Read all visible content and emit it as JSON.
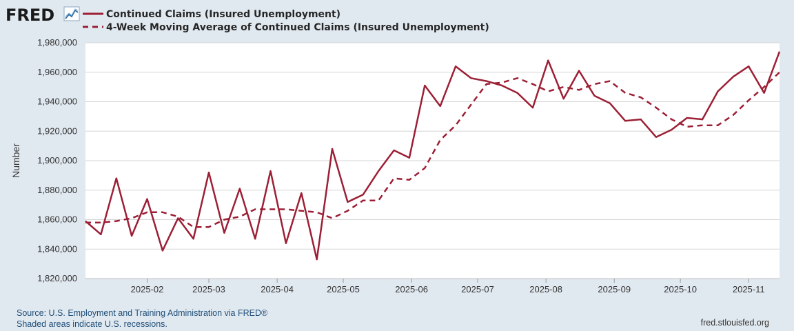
{
  "header": {
    "logo_text": "FRED",
    "logo_icon": "line-chart-icon"
  },
  "footer": {
    "source": "Source: U.S. Employment and Training Administration via FRED®",
    "recession_note": "Shaded areas indicate U.S. recessions.",
    "site": "fred.stlouisfed.org"
  },
  "chart_data": {
    "type": "line",
    "title": "",
    "xlabel": "",
    "ylabel": "Number",
    "ylim": [
      1820000,
      1980000
    ],
    "yticks": [
      1820000,
      1840000,
      1860000,
      1880000,
      1900000,
      1920000,
      1940000,
      1960000,
      1980000
    ],
    "ytick_labels": [
      "1,820,000",
      "1,840,000",
      "1,860,000",
      "1,880,000",
      "1,900,000",
      "1,920,000",
      "1,940,000",
      "1,960,000",
      "1,980,000"
    ],
    "xlim": [
      "2025-01-04",
      "2025-11-15"
    ],
    "xticks": [
      "2025-02-01",
      "2025-03-01",
      "2025-04-01",
      "2025-05-01",
      "2025-06-01",
      "2025-07-01",
      "2025-08-01",
      "2025-09-01",
      "2025-10-01",
      "2025-11-01"
    ],
    "xtick_labels": [
      "2025-02",
      "2025-03",
      "2025-04",
      "2025-05",
      "2025-06",
      "2025-07",
      "2025-08",
      "2025-09",
      "2025-10",
      "2025-11"
    ],
    "grid": true,
    "legend_position": "top-left",
    "x": [
      "2025-01-04",
      "2025-01-11",
      "2025-01-18",
      "2025-01-25",
      "2025-02-01",
      "2025-02-08",
      "2025-02-15",
      "2025-02-22",
      "2025-03-01",
      "2025-03-08",
      "2025-03-15",
      "2025-03-22",
      "2025-03-29",
      "2025-04-05",
      "2025-04-12",
      "2025-04-19",
      "2025-04-26",
      "2025-05-03",
      "2025-05-10",
      "2025-05-17",
      "2025-05-24",
      "2025-05-31",
      "2025-06-07",
      "2025-06-14",
      "2025-06-21",
      "2025-06-28",
      "2025-07-05",
      "2025-07-12",
      "2025-07-19",
      "2025-07-26",
      "2025-08-02",
      "2025-08-09",
      "2025-08-16",
      "2025-08-23",
      "2025-08-30",
      "2025-09-06",
      "2025-09-13",
      "2025-09-20",
      "2025-09-27",
      "2025-10-04",
      "2025-10-11",
      "2025-10-18",
      "2025-10-25",
      "2025-11-01",
      "2025-11-08",
      "2025-11-15"
    ],
    "series": [
      {
        "name": "Continued Claims (Insured Unemployment)",
        "color": "#9c1f35",
        "style": "solid",
        "values": [
          1859000,
          1850000,
          1888000,
          1849000,
          1874000,
          1839000,
          1861000,
          1847000,
          1892000,
          1851000,
          1881000,
          1847000,
          1893000,
          1844000,
          1878000,
          1833000,
          1908000,
          1872000,
          1877000,
          1893000,
          1907000,
          1902000,
          1951000,
          1937000,
          1964000,
          1956000,
          1954000,
          1951000,
          1946000,
          1936000,
          1968000,
          1942000,
          1961000,
          1944000,
          1939000,
          1927000,
          1928000,
          1916000,
          1921000,
          1929000,
          1928000,
          1947000,
          1957000,
          1964000,
          1946000,
          1974000
        ]
      },
      {
        "name": "4-Week Moving Average of Continued Claims (Insured Unemployment)",
        "color": "#9c1f35",
        "style": "dashed",
        "values": [
          1858000,
          1858000,
          1859000,
          1861000,
          1865000,
          1865000,
          1862000,
          1855000,
          1855000,
          1860000,
          1862000,
          1867000,
          1867000,
          1867000,
          1866000,
          1865000,
          1861000,
          1866000,
          1873000,
          1873000,
          1888000,
          1887000,
          1895000,
          1914000,
          1924000,
          1938000,
          1952000,
          1953000,
          1956000,
          1952000,
          1947000,
          1950000,
          1948000,
          1952000,
          1954000,
          1946000,
          1943000,
          1936000,
          1928000,
          1923000,
          1924000,
          1924000,
          1931000,
          1941000,
          1950000,
          1960000
        ]
      }
    ]
  }
}
